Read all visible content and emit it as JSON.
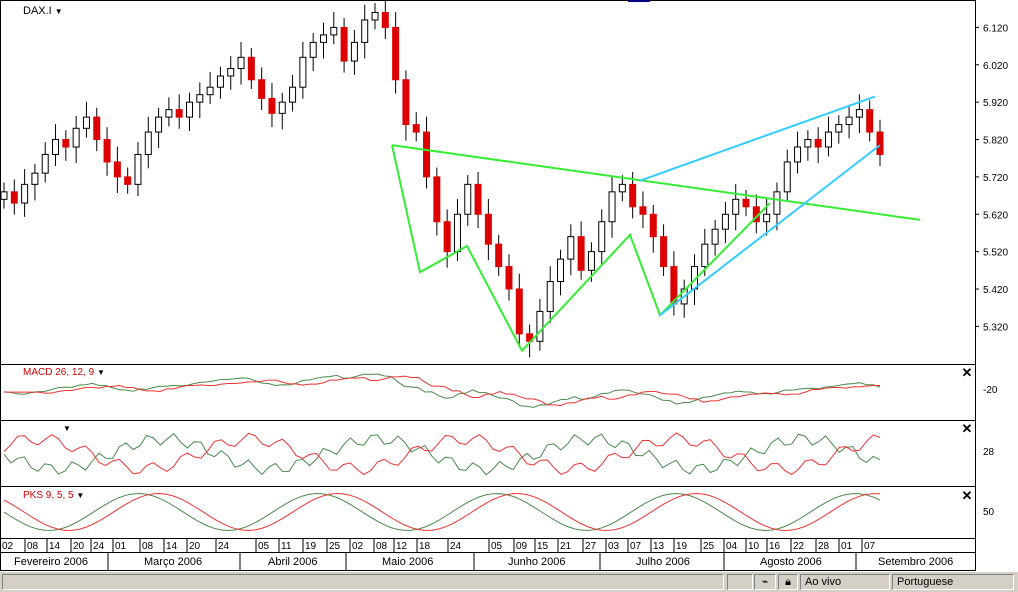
{
  "symbol": "DAX.I",
  "chart_data": {
    "type": "candlestick",
    "symbol": "DAX.I",
    "ylim": [
      5230,
      6180
    ],
    "y_ticks": [
      "6.120",
      "6.020",
      "5.920",
      "5.820",
      "5.720",
      "5.620",
      "5.520",
      "5.420",
      "5.320"
    ],
    "y_tick_values": [
      6120,
      6020,
      5920,
      5820,
      5720,
      5620,
      5520,
      5420,
      5320
    ],
    "day_labels": [
      "02",
      "08",
      "14",
      "20",
      "24",
      "01",
      "08",
      "14",
      "20",
      "24",
      "05",
      "11",
      "19",
      "25",
      "02",
      "08",
      "12",
      "18",
      "24",
      "05",
      "09",
      "15",
      "21",
      "27",
      "03",
      "07",
      "13",
      "19",
      "25",
      "04",
      "10",
      "16",
      "22",
      "28",
      "01",
      "07"
    ],
    "month_labels": [
      "Fevereiro 2006",
      "Março 2006",
      "Abril 2006",
      "Maio 2006",
      "Junho 2006",
      "Julho 2006",
      "Agosto 2006",
      "Setembro 2006"
    ],
    "series_close_approx": [
      5680,
      5650,
      5700,
      5730,
      5780,
      5820,
      5800,
      5850,
      5880,
      5820,
      5760,
      5720,
      5700,
      5780,
      5840,
      5880,
      5900,
      5880,
      5920,
      5940,
      5960,
      5990,
      6010,
      6040,
      5980,
      5930,
      5890,
      5920,
      5960,
      6040,
      6080,
      6100,
      6120,
      6030,
      6080,
      6140,
      6160,
      6120,
      5980,
      5860,
      5840,
      5720,
      5600,
      5520,
      5620,
      5700,
      5620,
      5540,
      5480,
      5420,
      5300,
      5280,
      5360,
      5440,
      5500,
      5560,
      5470,
      5520,
      5600,
      5680,
      5700,
      5640,
      5620,
      5560,
      5480,
      5380,
      5420,
      5480,
      5540,
      5580,
      5620,
      5660,
      5640,
      5600,
      5620,
      5680,
      5760,
      5800,
      5820,
      5800,
      5840,
      5860,
      5880,
      5900,
      5840,
      5780
    ],
    "pattern_lines": {
      "green_neckline": [
        [
          0.0,
          5805
        ],
        [
          1.0,
          5605
        ]
      ],
      "green_pattern": [
        5805,
        5465,
        5535,
        5255,
        5565,
        5350,
        5650
      ],
      "blue_channel_upper": [
        5710,
        5935
      ],
      "blue_channel_lower": [
        5350,
        5805
      ]
    },
    "macd": {
      "label": "MACD 26, 12, 9",
      "tick": "-20"
    },
    "indicator2": {
      "tick": "28"
    },
    "pks": {
      "label": "PKS 9, 5, 5",
      "tick": "50"
    }
  },
  "statusbar": {
    "mode": "Ao vivo",
    "language": "Portuguese"
  },
  "colors": {
    "bull": "#ffffff",
    "bear": "#dd0000",
    "green": "#33ee33",
    "blue": "#33ccff",
    "red_line": "#ee3333",
    "gray_line": "#4a8a4a"
  }
}
